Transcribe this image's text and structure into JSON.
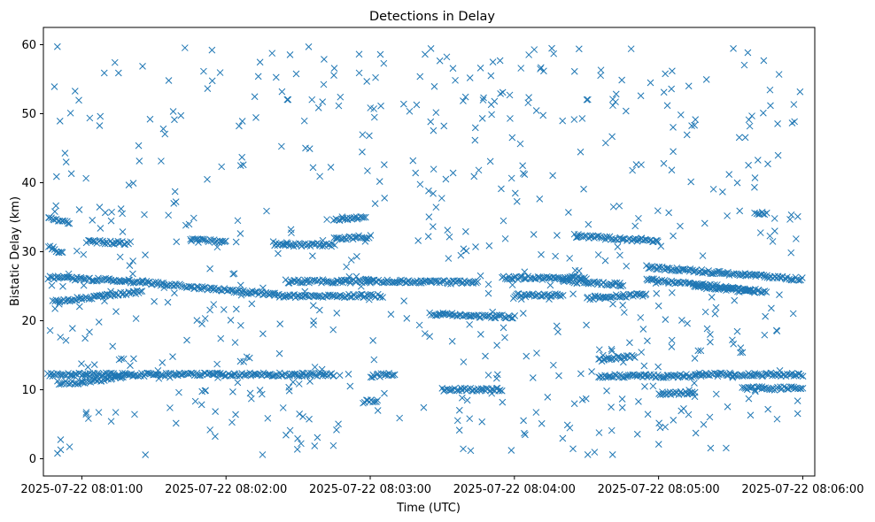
{
  "chart_data": {
    "type": "scatter",
    "title": "Detections in Delay",
    "xlabel": "Time (UTC)",
    "ylabel": "Bistatic Delay (km)",
    "x_ticks": [
      {
        "t": 0,
        "label": "2025-07-22 08:01:00"
      },
      {
        "t": 60,
        "label": "2025-07-22 08:02:00"
      },
      {
        "t": 120,
        "label": "2025-07-22 08:03:00"
      },
      {
        "t": 180,
        "label": "2025-07-22 08:04:00"
      },
      {
        "t": 240,
        "label": "2025-07-22 08:05:00"
      },
      {
        "t": 300,
        "label": "2025-07-22 08:06:00"
      }
    ],
    "y_ticks": [
      0,
      10,
      20,
      30,
      40,
      50,
      60
    ],
    "xlim": [
      "2025-07-22 08:00:44",
      "2025-07-22 08:06:05"
    ],
    "ylim": [
      -2.5,
      62.5
    ],
    "marker": "x",
    "color": "#1f77b4",
    "grid": false,
    "tracks": [
      {
        "t0": -14,
        "t1": 25,
        "y0": 26.3,
        "y1": 25.6
      },
      {
        "t0": 25,
        "t1": 80,
        "y0": 25.6,
        "y1": 23.8
      },
      {
        "t0": -12,
        "t1": 25,
        "y0": 22.8,
        "y1": 24.2
      },
      {
        "t0": -14,
        "t1": 105,
        "y0": 12.2,
        "y1": 12.2
      },
      {
        "t0": -10,
        "t1": 0,
        "y0": 11.0,
        "y1": 11.0
      },
      {
        "t0": 0,
        "t1": 18,
        "y0": 11.0,
        "y1": 12.0
      },
      {
        "t0": -14,
        "t1": -5,
        "y0": 34.8,
        "y1": 34.3
      },
      {
        "t0": -14,
        "t1": -8,
        "y0": 30.8,
        "y1": 29.8
      },
      {
        "t0": 2,
        "t1": 20,
        "y0": 31.5,
        "y1": 31.2
      },
      {
        "t0": 45,
        "t1": 60,
        "y0": 31.7,
        "y1": 31.5
      },
      {
        "t0": 80,
        "t1": 105,
        "y0": 31.0,
        "y1": 31.0
      },
      {
        "t0": 105,
        "t1": 118,
        "y0": 34.6,
        "y1": 35.0
      },
      {
        "t0": 105,
        "t1": 120,
        "y0": 31.8,
        "y1": 32.2
      },
      {
        "t0": 85,
        "t1": 120,
        "y0": 25.7,
        "y1": 25.7
      },
      {
        "t0": 80,
        "t1": 125,
        "y0": 23.6,
        "y1": 23.6
      },
      {
        "t0": 118,
        "t1": 165,
        "y0": 25.8,
        "y1": 25.5
      },
      {
        "t0": 145,
        "t1": 180,
        "y0": 21.0,
        "y1": 20.5
      },
      {
        "t0": 120,
        "t1": 130,
        "y0": 12.0,
        "y1": 12.3
      },
      {
        "t0": 117,
        "t1": 123,
        "y0": 8.3,
        "y1": 8.3
      },
      {
        "t0": 150,
        "t1": 175,
        "y0": 10.0,
        "y1": 10.0
      },
      {
        "t0": 175,
        "t1": 210,
        "y0": 26.2,
        "y1": 26.2
      },
      {
        "t0": 180,
        "t1": 200,
        "y0": 23.7,
        "y1": 23.7
      },
      {
        "t0": 200,
        "t1": 225,
        "y0": 25.8,
        "y1": 25.2
      },
      {
        "t0": 205,
        "t1": 240,
        "y0": 32.3,
        "y1": 31.5
      },
      {
        "t0": 210,
        "t1": 235,
        "y0": 23.3,
        "y1": 23.8
      },
      {
        "t0": 215,
        "t1": 230,
        "y0": 14.3,
        "y1": 14.9
      },
      {
        "t0": 215,
        "t1": 255,
        "y0": 12.0,
        "y1": 12.0
      },
      {
        "t0": 240,
        "t1": 255,
        "y0": 9.5,
        "y1": 9.5
      },
      {
        "t0": 255,
        "t1": 300,
        "y0": 12.2,
        "y1": 12.2
      },
      {
        "t0": 235,
        "t1": 300,
        "y0": 27.8,
        "y1": 26.0
      },
      {
        "t0": 235,
        "t1": 285,
        "y0": 26.0,
        "y1": 24.2
      },
      {
        "t0": 255,
        "t1": 280,
        "y0": 25.0,
        "y1": 24.2
      },
      {
        "t0": 275,
        "t1": 300,
        "y0": 10.2,
        "y1": 10.2
      },
      {
        "t0": 280,
        "t1": 285,
        "y0": 35.6,
        "y1": 35.6
      }
    ],
    "noise_count": 640,
    "noise_seed": 20250722
  }
}
